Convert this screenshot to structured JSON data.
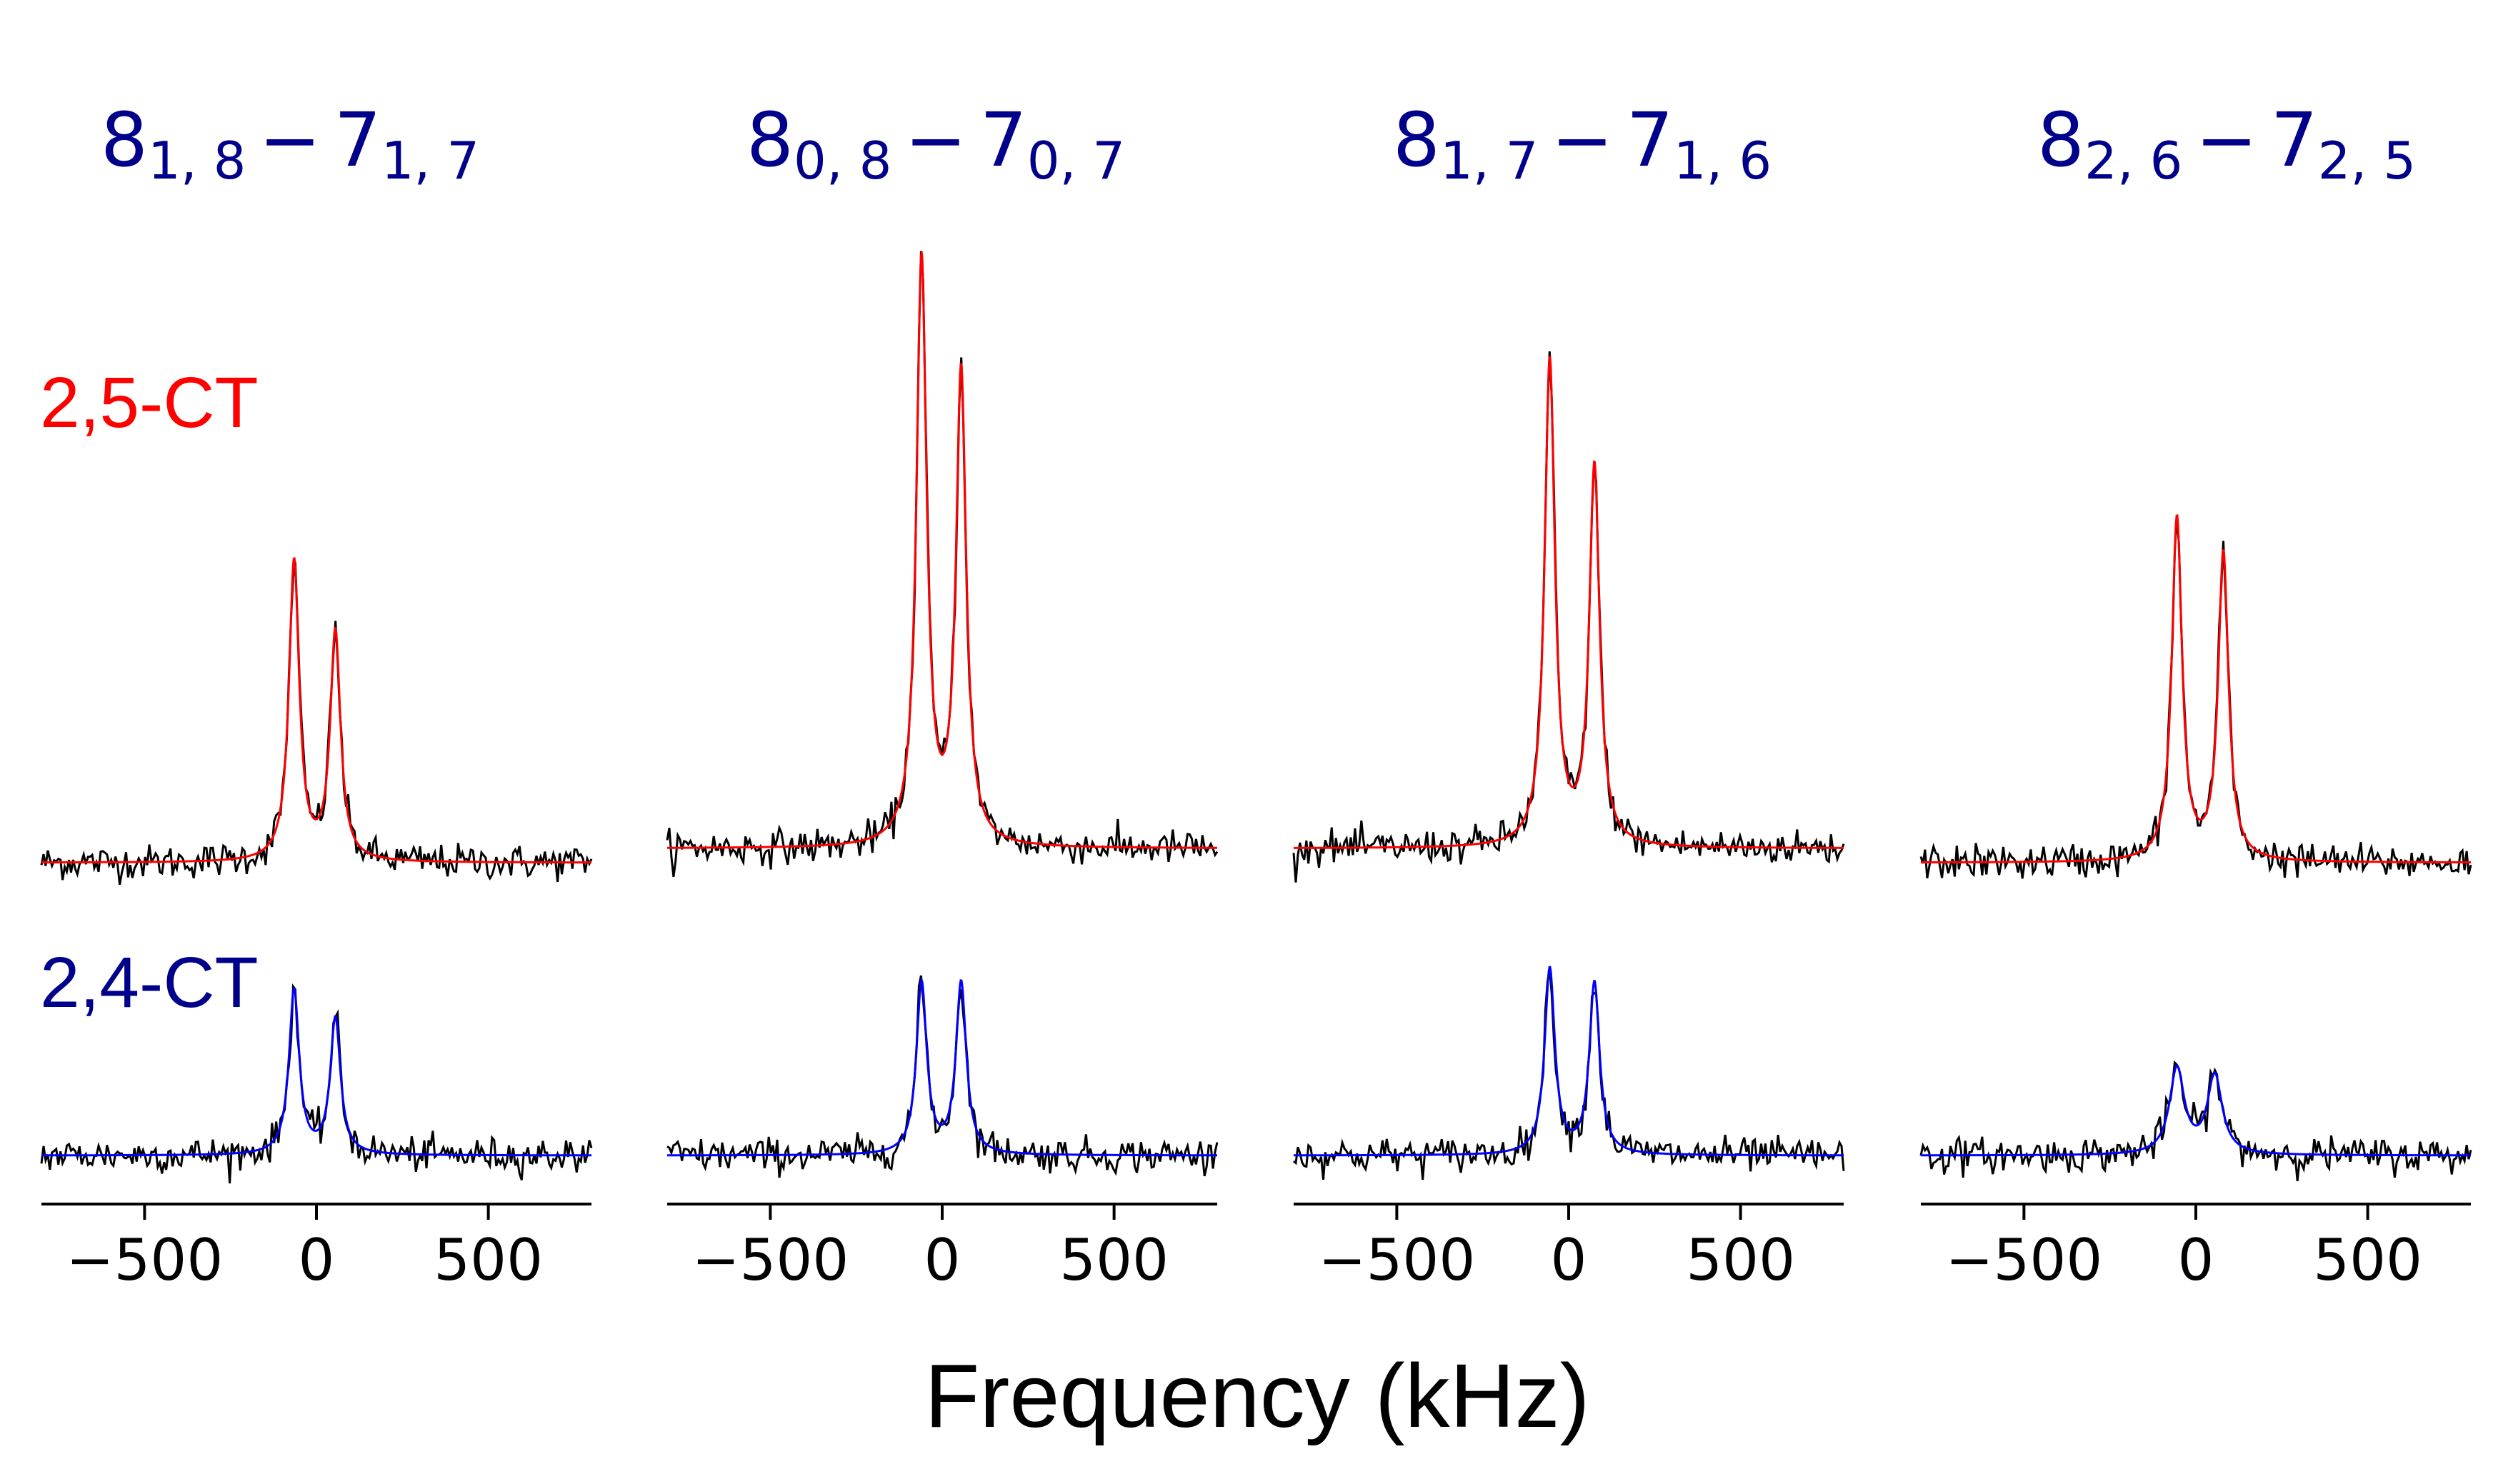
{
  "chart_data": {
    "type": "line",
    "xlabel": "Frequency (kHz)",
    "xlim": [
      -800,
      800
    ],
    "xticks": [
      -500,
      0,
      500
    ],
    "xtick_labels": [
      "−500",
      "0",
      "500"
    ],
    "rows": [
      {
        "name": "2,5-CT",
        "label": "2,5-CT",
        "fit_color": "#ff0000",
        "label_color": "#ff0000"
      },
      {
        "name": "2,4-CT",
        "label": "2,4-CT",
        "fit_color": "#0000ff",
        "label_color": "#00008b"
      }
    ],
    "panels": [
      {
        "title": {
          "j": "8",
          "ka_kc": "1, 8",
          "dash": "−",
          "j2": "7",
          "ka_kc2": "1, 7"
        },
        "fits": [
          {
            "series": "2,5-CT",
            "baseline": 0,
            "peaks": [
              {
                "x": -65,
                "height": 0.42
              },
              {
                "x": 55,
                "height": 0.32
              }
            ],
            "width": 18
          },
          {
            "series": "2,4-CT",
            "baseline": 0,
            "peaks": [
              {
                "x": -65,
                "height": 0.23
              },
              {
                "x": 55,
                "height": 0.19
              }
            ],
            "width": 18
          }
        ]
      },
      {
        "title": {
          "j": "8",
          "ka_kc": "0, 8",
          "dash": "−",
          "j2": "7",
          "ka_kc2": "0, 7"
        },
        "fits": [
          {
            "series": "2,5-CT",
            "baseline": 0.02,
            "peaks": [
              {
                "x": -60,
                "height": 0.82
              },
              {
                "x": 55,
                "height": 0.66
              }
            ],
            "width": 18
          },
          {
            "series": "2,4-CT",
            "baseline": 0,
            "peaks": [
              {
                "x": -60,
                "height": 0.24
              },
              {
                "x": 55,
                "height": 0.24
              }
            ],
            "width": 18
          }
        ]
      },
      {
        "title": {
          "j": "8",
          "ka_kc": "1, 7",
          "dash": "−",
          "j2": "7",
          "ka_kc2": "1, 6"
        },
        "fits": [
          {
            "series": "2,5-CT",
            "baseline": 0.02,
            "peaks": [
              {
                "x": -55,
                "height": 0.68
              },
              {
                "x": 75,
                "height": 0.53
              }
            ],
            "width": 18
          },
          {
            "series": "2,4-CT",
            "baseline": 0,
            "peaks": [
              {
                "x": -55,
                "height": 0.26
              },
              {
                "x": 75,
                "height": 0.24
              }
            ],
            "width": 18
          }
        ]
      },
      {
        "title": {
          "j": "8",
          "ka_kc": "2, 6",
          "dash": "−",
          "j2": "7",
          "ka_kc2": "2, 5"
        },
        "fits": [
          {
            "series": "2,5-CT",
            "baseline": 0.0,
            "peaks": [
              {
                "x": -55,
                "height": 0.48
              },
              {
                "x": 80,
                "height": 0.43
              }
            ],
            "width": 18
          },
          {
            "series": "2,4-CT",
            "baseline": 0,
            "peaks": [
              {
                "x": -55,
                "height": 0.12
              },
              {
                "x": 55,
                "height": 0.11
              }
            ],
            "width": 26
          }
        ]
      }
    ]
  }
}
